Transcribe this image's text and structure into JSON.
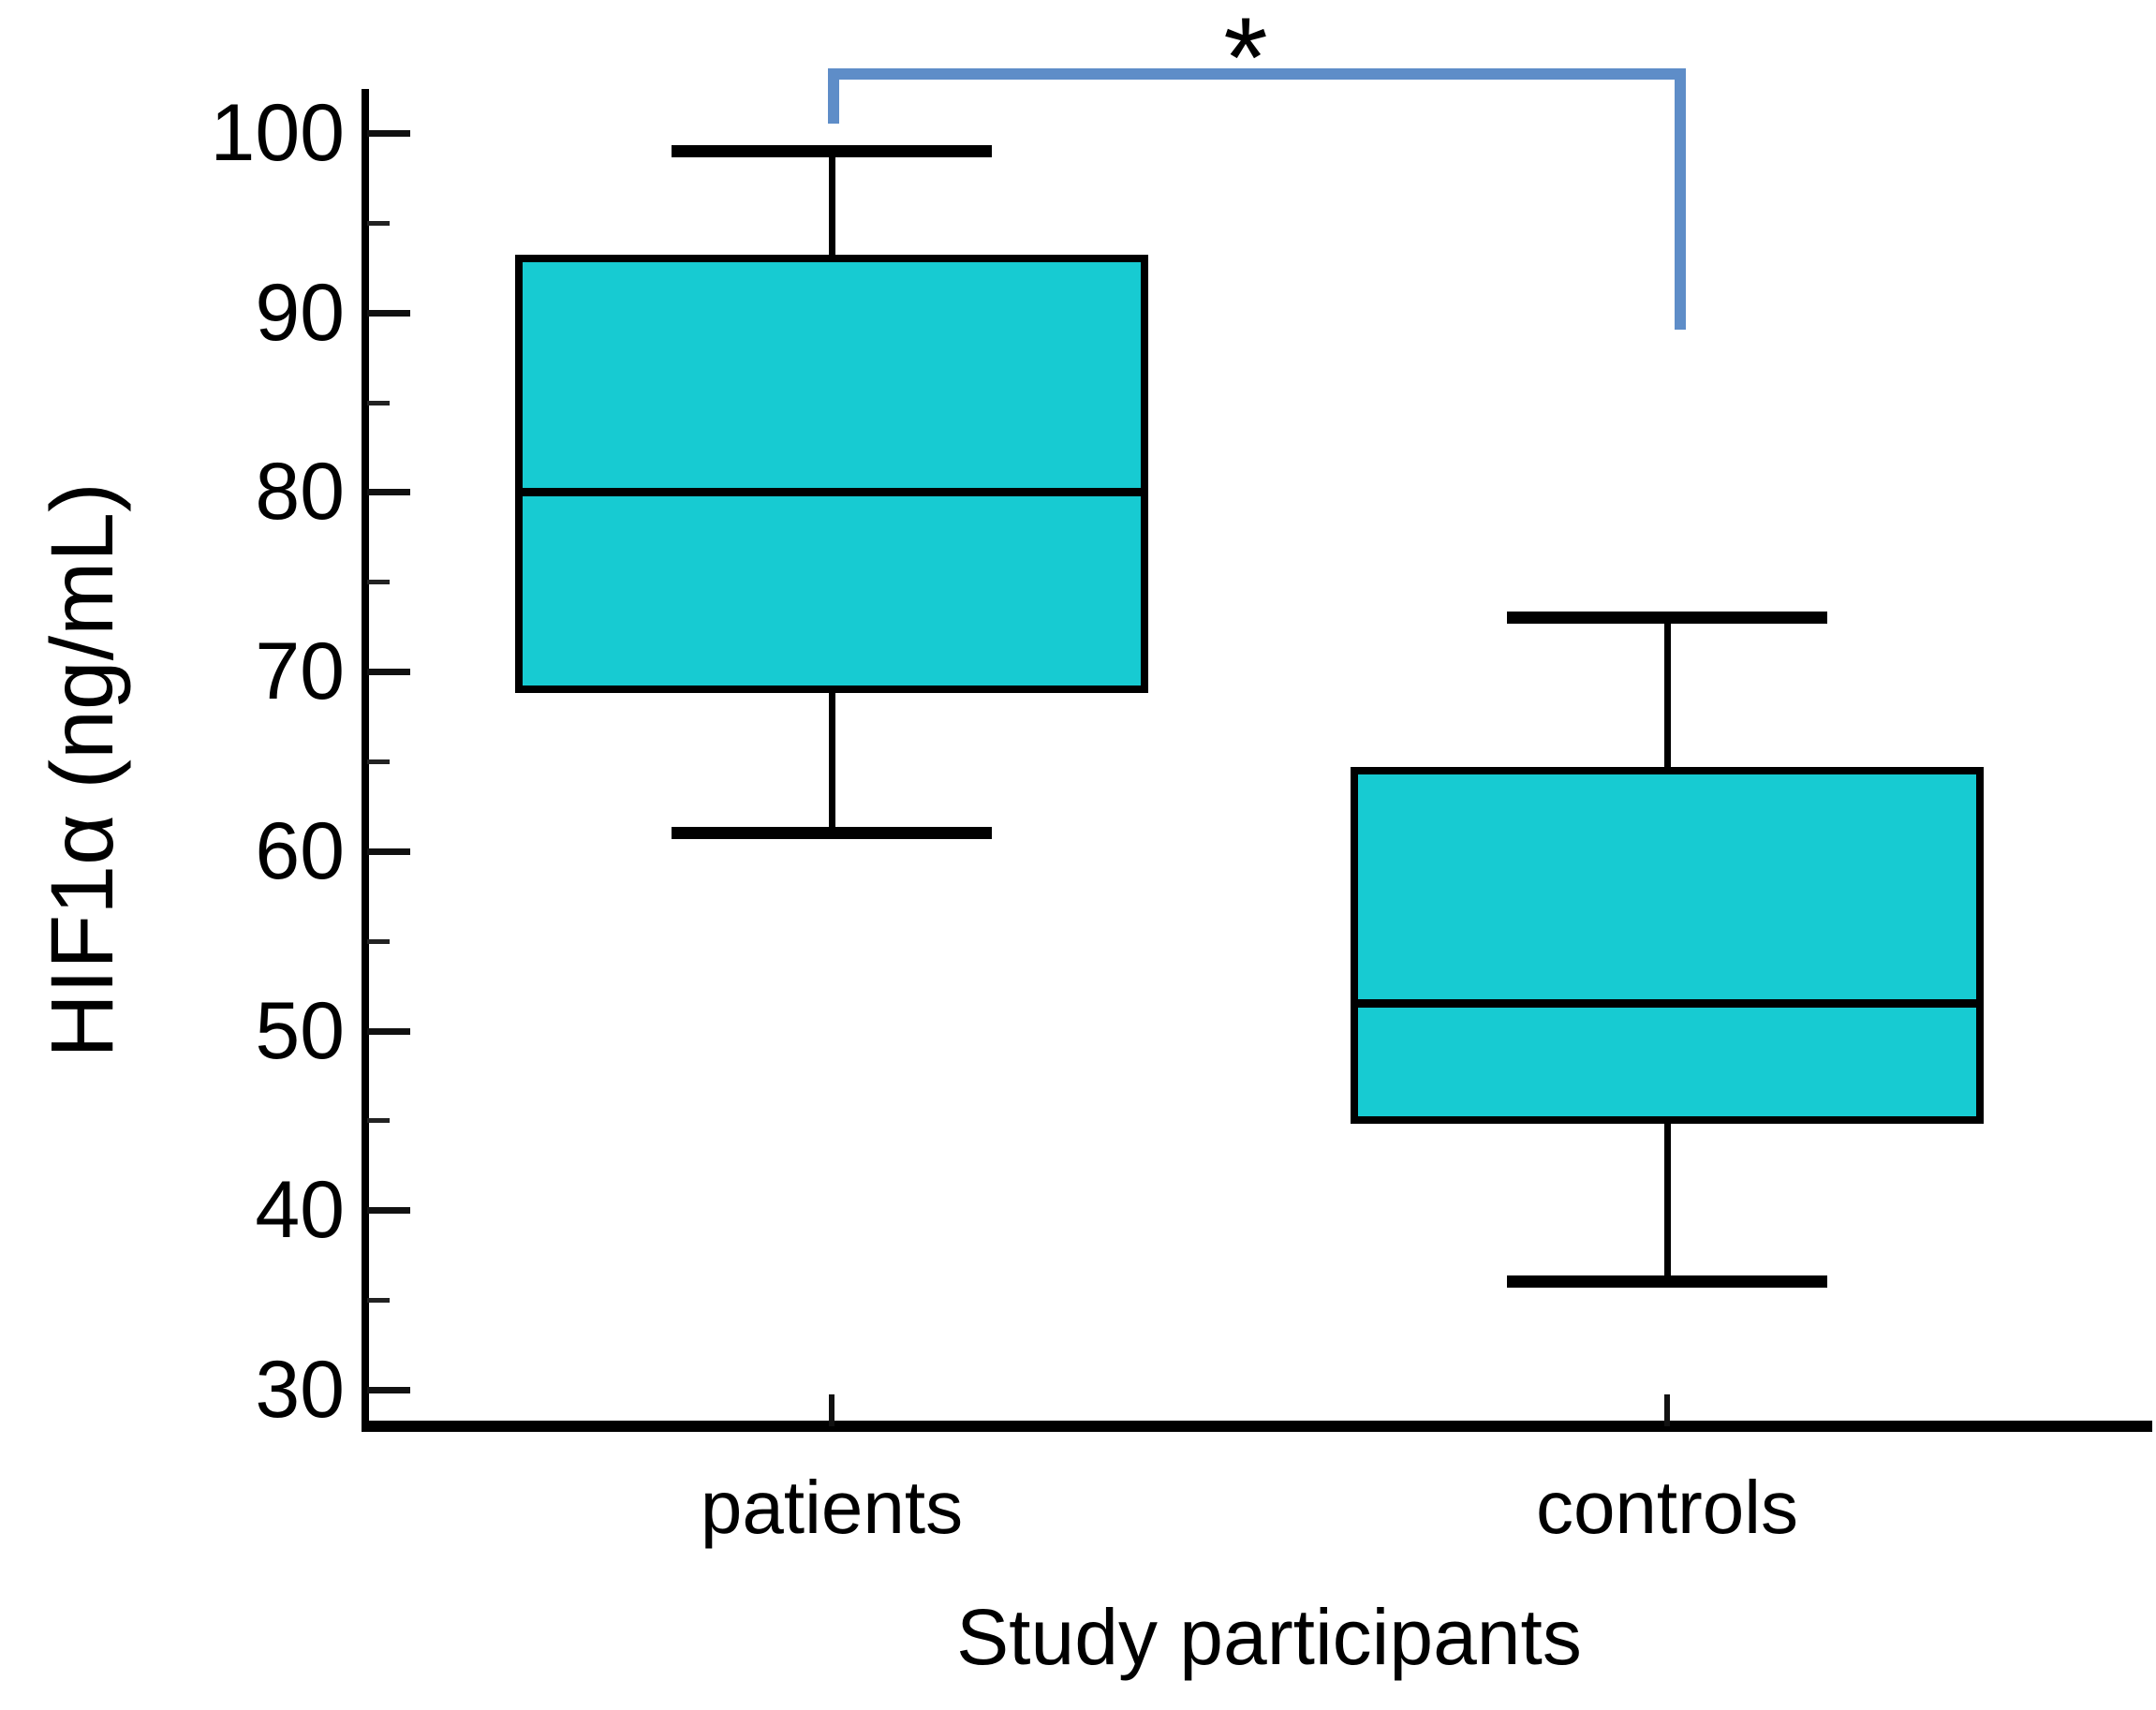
{
  "figure": {
    "ylabel": "HIF1α (ng/mL)",
    "xlabel": "Study participants",
    "significance_symbol": "*",
    "colors": {
      "box_fill": "#17CBD2",
      "box_border": "#000000",
      "bracket": "#5E8DC8",
      "axis": "#000000",
      "text": "#000000",
      "background": "#FFFFFF"
    }
  },
  "chart_data": {
    "type": "box",
    "title": "",
    "xlabel": "Study participants",
    "ylabel": "HIF1α (ng/mL)",
    "categories": [
      "patients",
      "controls"
    ],
    "series": [
      {
        "name": "patients",
        "min": 61,
        "q1": 69,
        "median": 80,
        "q3": 93,
        "max": 99
      },
      {
        "name": "controls",
        "min": 36,
        "q1": 45,
        "median": 51.5,
        "q3": 64.5,
        "max": 73
      }
    ],
    "ylim": [
      28,
      102
    ],
    "yticks_major": [
      100,
      90,
      80,
      70,
      60,
      50,
      40,
      30
    ],
    "yticks_minor": [
      95,
      85,
      75,
      65,
      55,
      45,
      35
    ],
    "grid": false,
    "legend": null,
    "annotations": [
      {
        "type": "significance-bracket",
        "symbol": "*",
        "from": "patients",
        "to": "controls"
      }
    ]
  }
}
